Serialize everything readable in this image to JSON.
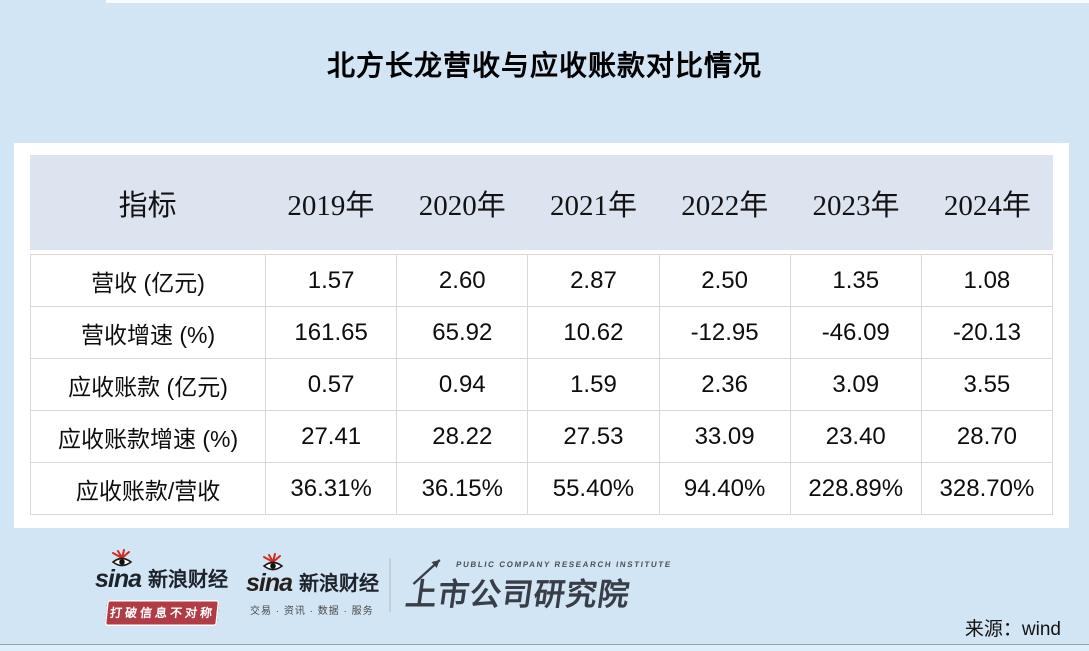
{
  "page": {
    "title": "北方长龙营收与应收账款对比情况",
    "source_note": "来源：wind"
  },
  "table": {
    "header": [
      "指标",
      "2019年",
      "2020年",
      "2021年",
      "2022年",
      "2023年",
      "2024年"
    ],
    "rows": [
      {
        "label": "营收 (亿元)",
        "values": [
          "1.57",
          "2.60",
          "2.87",
          "2.50",
          "1.35",
          "1.08"
        ]
      },
      {
        "label": "营收增速 (%)",
        "values": [
          "161.65",
          "65.92",
          "10.62",
          "-12.95",
          "-46.09",
          "-20.13"
        ]
      },
      {
        "label": "应收账款 (亿元)",
        "values": [
          "0.57",
          "0.94",
          "1.59",
          "2.36",
          "3.09",
          "3.55"
        ]
      },
      {
        "label": "应收账款增速 (%)",
        "values": [
          "27.41",
          "28.22",
          "27.53",
          "33.09",
          "23.40",
          "28.70"
        ]
      },
      {
        "label": "应收账款/营收",
        "values": [
          "36.31%",
          "36.15%",
          "55.40%",
          "94.40%",
          "228.89%",
          "328.70%"
        ]
      }
    ]
  },
  "chart_data": {
    "type": "table",
    "title": "北方长龙营收与应收账款对比情况",
    "categories": [
      "2019年",
      "2020年",
      "2021年",
      "2022年",
      "2023年",
      "2024年"
    ],
    "series": [
      {
        "name": "营收 (亿元)",
        "values": [
          1.57,
          2.6,
          2.87,
          2.5,
          1.35,
          1.08
        ]
      },
      {
        "name": "营收增速 (%)",
        "values": [
          161.65,
          65.92,
          10.62,
          -12.95,
          -46.09,
          -20.13
        ]
      },
      {
        "name": "应收账款 (亿元)",
        "values": [
          0.57,
          0.94,
          1.59,
          2.36,
          3.09,
          3.55
        ]
      },
      {
        "name": "应收账款增速 (%)",
        "values": [
          27.41,
          28.22,
          27.53,
          33.09,
          23.4,
          28.7
        ]
      },
      {
        "name": "应收账款/营收",
        "values": [
          "36.31%",
          "36.15%",
          "55.40%",
          "94.40%",
          "228.89%",
          "328.70%"
        ]
      }
    ],
    "source": "wind"
  },
  "footer": {
    "sina_logo_1": {
      "brand": "sina",
      "name": "新浪财经",
      "badge": "打破信息不对称"
    },
    "sina_logo_2": {
      "brand": "sina",
      "name": "新浪财经",
      "tagline": "交易 · 资讯 · 数据 · 服务"
    },
    "institute_logo": {
      "en": "PUBLIC COMPANY RESEARCH INSTITUTE",
      "zh": "上市公司研究院"
    }
  },
  "colors": {
    "page_background": "#d2e5f4",
    "panel_background": "#ffffff",
    "header_row_background": "#dce5ef",
    "table_border": "#d9d9d9",
    "badge_red": "#b13c46",
    "sina_eye_red": "#d6281e",
    "institute_gray": "#383e47"
  }
}
